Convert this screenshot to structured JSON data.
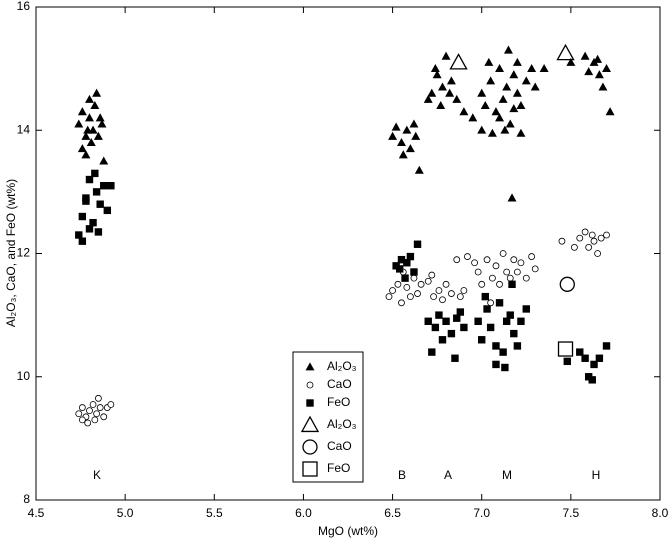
{
  "chart_data": {
    "type": "scatter",
    "x_label": "MgO (wt%)",
    "y_label": "Al₂O₃, CaO, and FeO (wt%)",
    "xlim": [
      4.5,
      8.0
    ],
    "xticks": [
      4.5,
      {
        "value": 5,
        "label": "5.0"
      },
      5.5,
      {
        "value": 6,
        "label": "6.0"
      },
      6.5,
      {
        "value": 7,
        "label": "7.0"
      },
      7.5,
      {
        "value": 8,
        "label": "8.0"
      }
    ],
    "ylim": [
      8,
      16
    ],
    "yticks": [
      8,
      10,
      12,
      14,
      16
    ],
    "grid": false,
    "cluster_labels": [
      "K",
      "B",
      "A",
      "M",
      "H"
    ],
    "series": [
      {
        "name": "Al₂O₃",
        "color": "#000000",
        "marker": "triangle",
        "filled": true,
        "size": "small",
        "x": [
          4.74,
          4.76,
          4.78,
          4.8,
          4.82,
          4.84,
          4.86,
          4.78,
          4.81,
          4.83,
          4.85,
          4.87,
          4.76,
          4.8,
          4.88,
          4.79,
          6.5,
          6.52,
          6.55,
          6.58,
          6.6,
          6.62,
          6.56,
          6.65,
          6.63,
          6.72,
          6.75,
          6.78,
          6.8,
          6.77,
          6.83,
          6.74,
          6.86,
          6.82,
          6.9,
          6.7,
          6.95,
          7.0,
          7.02,
          7.05,
          7.08,
          7.1,
          7.12,
          7.14,
          7.15,
          7.16,
          7.18,
          7.2,
          7.22,
          7.25,
          7.28,
          7.3,
          7.06,
          7.1,
          7.13,
          7.04,
          7.18,
          7.2,
          7.35,
          7.0,
          7.17,
          7.22,
          7.5,
          7.58,
          7.6,
          7.63,
          7.66,
          7.68,
          7.7,
          7.72,
          7.65
        ],
        "values": [
          14.1,
          14.3,
          13.9,
          14.5,
          14.0,
          14.6,
          14.2,
          13.6,
          13.8,
          14.4,
          13.9,
          14.1,
          13.7,
          14.2,
          13.5,
          14.0,
          13.9,
          14.05,
          13.8,
          14.0,
          13.7,
          14.1,
          13.6,
          13.35,
          13.9,
          14.6,
          14.9,
          14.7,
          15.2,
          14.4,
          14.8,
          15.0,
          14.5,
          14.6,
          14.3,
          14.5,
          14.2,
          14.6,
          14.4,
          14.8,
          14.3,
          15.0,
          14.5,
          14.7,
          15.3,
          14.1,
          14.9,
          14.6,
          14.4,
          14.8,
          15.0,
          14.7,
          13.95,
          14.2,
          14.0,
          15.1,
          14.35,
          15.1,
          15.0,
          14.0,
          12.9,
          13.95,
          15.1,
          15.2,
          14.95,
          15.1,
          14.9,
          14.7,
          15.0,
          14.3,
          15.15
        ]
      },
      {
        "name": "CaO",
        "color": "#000000",
        "marker": "circle",
        "filled": false,
        "size": "small",
        "x": [
          4.74,
          4.76,
          4.78,
          4.8,
          4.82,
          4.84,
          4.86,
          4.88,
          4.9,
          4.85,
          4.79,
          4.83,
          4.76,
          4.92,
          6.48,
          6.5,
          6.53,
          6.55,
          6.58,
          6.6,
          6.62,
          6.64,
          6.66,
          6.56,
          6.7,
          6.73,
          6.76,
          6.78,
          6.8,
          6.83,
          6.86,
          6.88,
          6.9,
          6.92,
          6.72,
          6.98,
          7.0,
          7.03,
          7.06,
          7.08,
          7.1,
          7.12,
          7.14,
          7.16,
          7.18,
          7.2,
          7.22,
          7.25,
          7.28,
          7.3,
          7.05,
          7.02,
          6.96,
          7.45,
          7.52,
          7.55,
          7.58,
          7.6,
          7.63,
          7.65,
          7.67,
          7.7,
          7.62
        ],
        "values": [
          9.4,
          9.5,
          9.35,
          9.45,
          9.55,
          9.4,
          9.5,
          9.35,
          9.5,
          9.65,
          9.25,
          9.3,
          9.3,
          9.55,
          11.3,
          11.4,
          11.5,
          11.2,
          11.45,
          11.3,
          11.6,
          11.35,
          11.5,
          11.7,
          11.55,
          11.3,
          11.4,
          11.25,
          11.5,
          11.35,
          11.9,
          11.3,
          11.4,
          11.95,
          11.65,
          11.7,
          11.5,
          11.9,
          11.6,
          11.8,
          11.5,
          12.0,
          11.7,
          11.6,
          11.9,
          11.7,
          11.85,
          11.6,
          11.95,
          11.75,
          11.2,
          11.3,
          11.85,
          12.2,
          12.1,
          12.25,
          12.35,
          12.1,
          12.2,
          12.0,
          12.25,
          12.3,
          12.3
        ]
      },
      {
        "name": "FeO",
        "color": "#000000",
        "marker": "square",
        "filled": true,
        "size": "small",
        "x": [
          4.74,
          4.76,
          4.78,
          4.8,
          4.82,
          4.84,
          4.86,
          4.88,
          4.9,
          4.76,
          4.8,
          4.83,
          4.92,
          4.78,
          4.85,
          6.52,
          6.55,
          6.57,
          6.6,
          6.62,
          6.64,
          6.58,
          6.54,
          6.7,
          6.72,
          6.74,
          6.76,
          6.78,
          6.8,
          6.83,
          6.86,
          6.88,
          6.85,
          6.9,
          6.98,
          7.0,
          7.03,
          7.05,
          7.08,
          7.1,
          7.12,
          7.14,
          7.16,
          7.18,
          7.2,
          7.22,
          7.25,
          7.08,
          7.13,
          7.17,
          7.02,
          7.48,
          7.55,
          7.58,
          7.6,
          7.63,
          7.66,
          7.7,
          7.62
        ],
        "values": [
          12.3,
          12.6,
          12.9,
          13.2,
          12.5,
          13.0,
          12.8,
          13.1,
          12.7,
          12.2,
          12.4,
          13.3,
          13.1,
          12.85,
          12.35,
          11.8,
          11.9,
          11.6,
          11.95,
          11.7,
          12.15,
          11.85,
          11.75,
          10.9,
          10.4,
          10.8,
          11.0,
          10.6,
          10.9,
          10.7,
          10.95,
          11.05,
          10.3,
          10.8,
          10.9,
          10.6,
          11.1,
          10.8,
          10.5,
          11.2,
          10.4,
          10.9,
          11.0,
          10.7,
          10.5,
          10.9,
          11.1,
          10.2,
          10.15,
          11.5,
          11.3,
          10.25,
          10.4,
          10.3,
          10.0,
          10.2,
          10.3,
          10.5,
          9.95
        ]
      },
      {
        "name": "Al₂O₃",
        "color": "#000000",
        "marker": "triangle",
        "filled": false,
        "size": "large",
        "x": [
          6.87,
          7.47
        ],
        "values": [
          15.1,
          15.25
        ]
      },
      {
        "name": "CaO",
        "color": "#000000",
        "marker": "circle",
        "filled": false,
        "size": "large",
        "x": [
          7.48
        ],
        "values": [
          11.5
        ]
      },
      {
        "name": "FeO",
        "color": "#000000",
        "marker": "square",
        "filled": false,
        "size": "large",
        "x": [
          7.47
        ],
        "values": [
          10.45
        ]
      }
    ]
  }
}
